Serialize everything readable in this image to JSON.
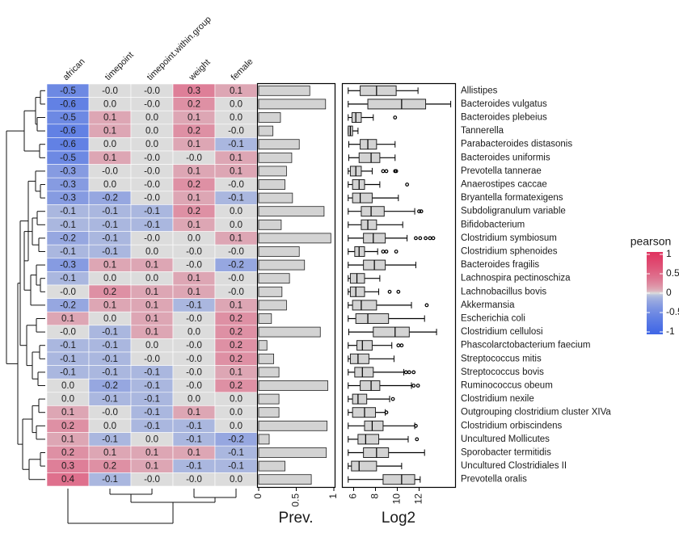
{
  "chart_data": [
    {
      "type": "heatmap",
      "columns": [
        "african",
        "timepoint",
        "timepoint.within.group",
        "weight",
        "female"
      ],
      "values": [
        [
          -0.5,
          0,
          0,
          0.3,
          0.1
        ],
        [
          -0.6,
          0,
          0,
          0.2,
          0
        ],
        [
          -0.5,
          0.1,
          0,
          0.1,
          0
        ],
        [
          -0.6,
          0.1,
          0,
          0.2,
          0
        ],
        [
          -0.6,
          0,
          0,
          0.1,
          -0.1
        ],
        [
          -0.5,
          0.1,
          0,
          0,
          0.1
        ],
        [
          -0.3,
          0,
          0,
          0.1,
          0.1
        ],
        [
          -0.3,
          0,
          0,
          0.2,
          0
        ],
        [
          -0.3,
          -0.2,
          0,
          0.1,
          -0.1
        ],
        [
          -0.1,
          -0.1,
          -0.1,
          0.2,
          0
        ],
        [
          -0.1,
          -0.1,
          -0.1,
          0.1,
          0
        ],
        [
          -0.2,
          -0.1,
          0,
          0,
          0.1
        ],
        [
          -0.1,
          -0.1,
          0,
          0,
          0
        ],
        [
          -0.3,
          0.1,
          0.1,
          0,
          -0.2
        ],
        [
          -0.1,
          0,
          0,
          0.1,
          0
        ],
        [
          0,
          0.2,
          0.1,
          0.1,
          0
        ],
        [
          -0.2,
          0.1,
          0.1,
          -0.1,
          0.1
        ],
        [
          0.1,
          0,
          0.1,
          0,
          0.2
        ],
        [
          0,
          -0.1,
          0.1,
          0,
          0.2
        ],
        [
          -0.1,
          -0.1,
          0,
          0,
          0.2
        ],
        [
          -0.1,
          -0.1,
          0,
          0,
          0.2
        ],
        [
          -0.1,
          -0.1,
          -0.1,
          0,
          0.1
        ],
        [
          0,
          -0.2,
          -0.1,
          0,
          0.2
        ],
        [
          0,
          -0.1,
          -0.1,
          0,
          0
        ],
        [
          0.1,
          0,
          -0.1,
          0.1,
          0
        ],
        [
          0.2,
          0,
          -0.1,
          -0.1,
          0
        ],
        [
          0.1,
          -0.1,
          0,
          -0.1,
          -0.2
        ],
        [
          0.2,
          0.1,
          0.1,
          0.1,
          -0.1
        ],
        [
          0.3,
          0.2,
          0.1,
          -0.1,
          -0.1
        ],
        [
          0.4,
          -0.1,
          0,
          0,
          0
        ]
      ],
      "value_labels": [
        [
          "-0.5",
          "-0.0",
          "-0.0",
          "0.3",
          "0.1"
        ],
        [
          "-0.6",
          "0.0",
          "-0.0",
          "0.2",
          "0.0"
        ],
        [
          "-0.5",
          "0.1",
          "0.0",
          "0.1",
          "0.0"
        ],
        [
          "-0.6",
          "0.1",
          "0.0",
          "0.2",
          "-0.0"
        ],
        [
          "-0.6",
          "0.0",
          "0.0",
          "0.1",
          "-0.1"
        ],
        [
          "-0.5",
          "0.1",
          "-0.0",
          "-0.0",
          "0.1"
        ],
        [
          "-0.3",
          "-0.0",
          "-0.0",
          "0.1",
          "0.1"
        ],
        [
          "-0.3",
          "0.0",
          "-0.0",
          "0.2",
          "-0.0"
        ],
        [
          "-0.3",
          "-0.2",
          "-0.0",
          "0.1",
          "-0.1"
        ],
        [
          "-0.1",
          "-0.1",
          "-0.1",
          "0.2",
          "0.0"
        ],
        [
          "-0.1",
          "-0.1",
          "-0.1",
          "0.1",
          "0.0"
        ],
        [
          "-0.2",
          "-0.1",
          "-0.0",
          "0.0",
          "0.1"
        ],
        [
          "-0.1",
          "-0.1",
          "0.0",
          "-0.0",
          "-0.0"
        ],
        [
          "-0.3",
          "0.1",
          "0.1",
          "-0.0",
          "-0.2"
        ],
        [
          "-0.1",
          "0.0",
          "0.0",
          "0.1",
          "-0.0"
        ],
        [
          "-0.0",
          "0.2",
          "0.1",
          "0.1",
          "-0.0"
        ],
        [
          "-0.2",
          "0.1",
          "0.1",
          "-0.1",
          "0.1"
        ],
        [
          "0.1",
          "0.0",
          "0.1",
          "-0.0",
          "0.2"
        ],
        [
          "-0.0",
          "-0.1",
          "0.1",
          "0.0",
          "0.2"
        ],
        [
          "-0.1",
          "-0.1",
          "0.0",
          "-0.0",
          "0.2"
        ],
        [
          "-0.1",
          "-0.1",
          "-0.0",
          "-0.0",
          "0.2"
        ],
        [
          "-0.1",
          "-0.1",
          "-0.1",
          "-0.0",
          "0.1"
        ],
        [
          "0.0",
          "-0.2",
          "-0.1",
          "-0.0",
          "0.2"
        ],
        [
          "0.0",
          "-0.1",
          "-0.1",
          "0.0",
          "0.0"
        ],
        [
          "0.1",
          "-0.0",
          "-0.1",
          "0.1",
          "0.0"
        ],
        [
          "0.2",
          "0.0",
          "-0.1",
          "-0.1",
          "0.0"
        ],
        [
          "0.1",
          "-0.1",
          "0.0",
          "-0.1",
          "-0.2"
        ],
        [
          "0.2",
          "0.1",
          "0.1",
          "0.1",
          "-0.1"
        ],
        [
          "0.3",
          "0.2",
          "0.1",
          "-0.1",
          "-0.1"
        ],
        [
          "0.4",
          "-0.1",
          "-0.0",
          "-0.0",
          "0.0"
        ]
      ],
      "colorbar": {
        "title": "pearson",
        "lim": [
          -1,
          1
        ],
        "ticks": [
          1,
          0.5,
          0,
          -0.5,
          -1
        ],
        "colors": [
          "#3f66e6",
          "#dcdcdc",
          "#e0325f"
        ]
      }
    },
    {
      "type": "bar",
      "xlabel": "Prev.",
      "color": "#d3d3d3",
      "xlim": [
        0,
        1
      ],
      "xticks": [
        0,
        0.5,
        1
      ],
      "values": [
        0.68,
        0.89,
        0.29,
        0.19,
        0.54,
        0.44,
        0.37,
        0.35,
        0.45,
        0.87,
        0.3,
        0.96,
        0.54,
        0.61,
        0.41,
        0.31,
        0.37,
        0.17,
        0.82,
        0.11,
        0.2,
        0.27,
        0.92,
        0.27,
        0.27,
        0.91,
        0.14,
        0.9,
        0.35,
        0.7
      ]
    },
    {
      "type": "box",
      "xlabel": "Log2",
      "color": "#d3d3d3",
      "xlim": [
        5,
        15.3
      ],
      "xticks": [
        6,
        8,
        10,
        12
      ],
      "categories": [
        "Allistipes",
        "Bacteroides vulgatus",
        "Bacteroides plebeius",
        "Tannerella",
        "Parabacteroides distasonis",
        "Bacteroides uniformis",
        "Prevotella tannerae",
        "Anaerostipes caccae",
        "Bryantella formatexigens",
        "Subdoligranulum variable",
        "Bifidobacterium",
        "Clostridium symbiosum",
        "Clostridium sphenoides",
        "Bacteroides fragilis",
        "Lachnospira pectinoschiza",
        "Lachnobacillus bovis",
        "Akkermansia",
        "Escherichia coli",
        "Clostridium cellulosi",
        "Phascolarctobacterium faecium",
        "Streptococcus mitis",
        "Streptococcus bovis",
        "Ruminococcus obeum",
        "Clostridium nexile",
        "Outgrouping clostridium cluster XIVa",
        "Clostridium orbiscindens",
        "Uncultured Mollicutes",
        "Sporobacter termitidis",
        "Uncultured Clostridiales II",
        "Prevotella oralis"
      ],
      "stats": [
        [
          5.5,
          6.6,
          8.1,
          9.9,
          11.9
        ],
        [
          5.5,
          7.3,
          10.4,
          12.6,
          14.9
        ],
        [
          5.5,
          5.85,
          6.2,
          6.7,
          7.8
        ],
        [
          5.5,
          5.5,
          5.7,
          5.9,
          6.4
        ],
        [
          5.55,
          6.6,
          7.3,
          8.1,
          9.8
        ],
        [
          5.55,
          6.5,
          7.6,
          8.4,
          9.8
        ],
        [
          5.5,
          5.7,
          6.2,
          6.7,
          7.7
        ],
        [
          5.5,
          5.9,
          6.5,
          7.0,
          8.4
        ],
        [
          5.5,
          5.9,
          6.6,
          7.7,
          10.1
        ],
        [
          5.5,
          6.7,
          7.6,
          8.8,
          11.6
        ],
        [
          5.5,
          6.7,
          7.3,
          8.1,
          10.5
        ],
        [
          5.5,
          6.9,
          7.8,
          8.9,
          10.9
        ],
        [
          5.5,
          6.1,
          6.5,
          7.0,
          8.2
        ],
        [
          5.5,
          6.9,
          7.9,
          8.9,
          11.7
        ],
        [
          5.5,
          5.7,
          6.3,
          7.0,
          8.4
        ],
        [
          5.5,
          5.7,
          6.2,
          7.0,
          8.3
        ],
        [
          5.5,
          5.9,
          6.7,
          8.1,
          11.3
        ],
        [
          5.5,
          6.2,
          7.3,
          9.2,
          12.5
        ],
        [
          5.55,
          7.8,
          9.8,
          11.1,
          13.6
        ],
        [
          5.5,
          6.3,
          6.8,
          7.7,
          9.5
        ],
        [
          5.5,
          5.7,
          6.4,
          7.4,
          9.7
        ],
        [
          5.5,
          6.1,
          6.8,
          7.8,
          10.6
        ],
        [
          5.5,
          6.6,
          7.6,
          8.4,
          11.3
        ],
        [
          5.5,
          5.9,
          6.4,
          7.2,
          9.3
        ],
        [
          5.5,
          5.9,
          7.0,
          8.0,
          8.9
        ],
        [
          5.5,
          7.0,
          7.7,
          8.7,
          11.6
        ],
        [
          5.5,
          6.4,
          7.1,
          8.3,
          11.0
        ],
        [
          5.5,
          6.9,
          8.1,
          9.2,
          12.5
        ],
        [
          5.5,
          5.8,
          6.5,
          8.1,
          10.4
        ],
        [
          5.5,
          8.7,
          10.4,
          11.6,
          12.1
        ]
      ],
      "outliers": [
        [],
        [],
        [
          9.8
        ],
        [],
        [],
        [],
        [
          8.7,
          9.0,
          9.8,
          9.9
        ],
        [
          10.9
        ],
        [],
        [
          12.0,
          12.2
        ],
        [],
        [
          11.7,
          12.1,
          12.6,
          13.0,
          13.3
        ],
        [
          8.7,
          9.0,
          9.9
        ],
        [],
        [],
        [
          9.3,
          10.1
        ],
        [
          12.7
        ],
        [],
        [],
        [
          10.1,
          10.4
        ],
        [],
        [
          10.8,
          11.1,
          11.5
        ],
        [
          11.5,
          11.9
        ],
        [
          9.6
        ],
        [
          9.0
        ],
        [
          11.7
        ],
        [
          11.8
        ],
        [],
        [],
        []
      ]
    }
  ]
}
